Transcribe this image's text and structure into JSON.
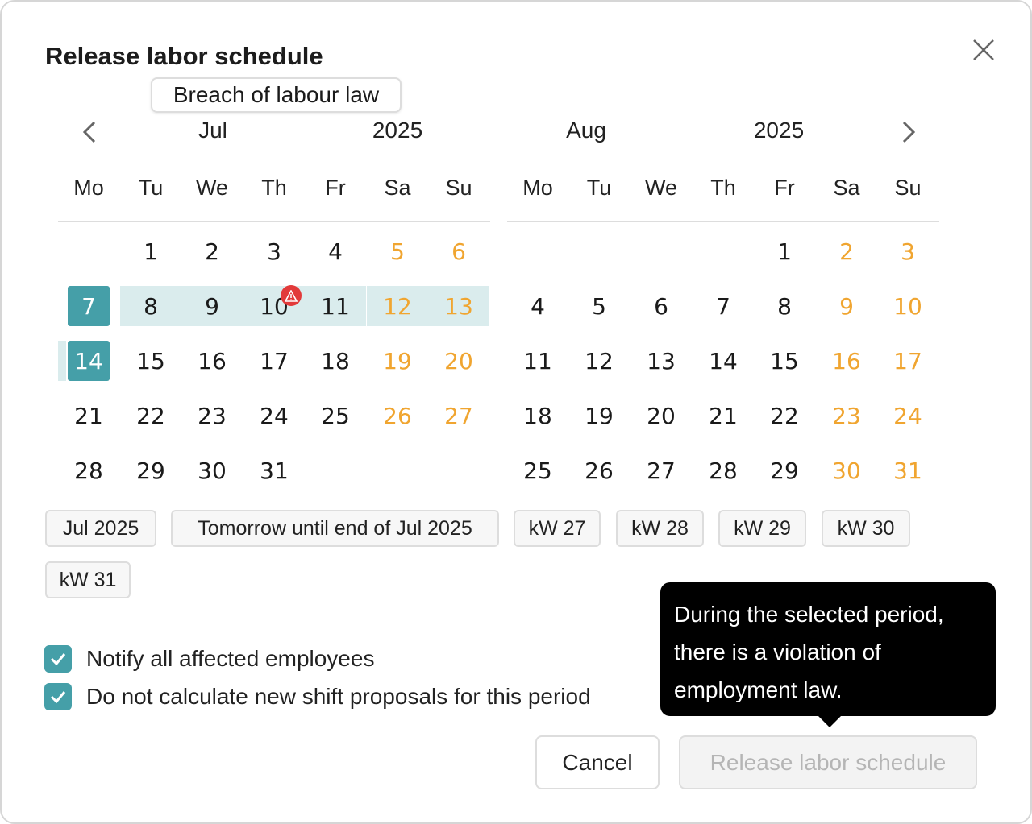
{
  "dialog": {
    "title": "Release labor schedule",
    "close_icon": "close-icon"
  },
  "calendar": {
    "left": {
      "month": "Jul",
      "year": "2025"
    },
    "right": {
      "month": "Aug",
      "year": "2025"
    },
    "weekdays": [
      "Mo",
      "Tu",
      "We",
      "Th",
      "Fr",
      "Sa",
      "Su"
    ],
    "left_weeks": [
      [
        "",
        "1",
        "2",
        "3",
        "4",
        "5",
        "6"
      ],
      [
        "7",
        "8",
        "9",
        "10",
        "11",
        "12",
        "13"
      ],
      [
        "14",
        "15",
        "16",
        "17",
        "18",
        "19",
        "20"
      ],
      [
        "21",
        "22",
        "23",
        "24",
        "25",
        "26",
        "27"
      ],
      [
        "28",
        "29",
        "30",
        "31",
        "",
        "",
        ""
      ]
    ],
    "right_weeks": [
      [
        "",
        "",
        "",
        "",
        "1",
        "2",
        "3"
      ],
      [
        "4",
        "5",
        "6",
        "7",
        "8",
        "9",
        "10"
      ],
      [
        "11",
        "12",
        "13",
        "14",
        "15",
        "16",
        "17"
      ],
      [
        "18",
        "19",
        "20",
        "21",
        "22",
        "23",
        "24"
      ],
      [
        "25",
        "26",
        "27",
        "28",
        "29",
        "30",
        "31"
      ]
    ],
    "selected_range": {
      "start": "Jul 7",
      "end": "Jul 14"
    },
    "warning_day": "10",
    "day_tooltip": "Breach of labour law",
    "colors": {
      "accent": "#459fa8",
      "range": "#daeced",
      "weekend": "#f0a530",
      "warning": "#e23a3a"
    }
  },
  "presets": [
    "Jul 2025",
    "Tomorrow until end of Jul 2025",
    "kW 27",
    "kW 28",
    "kW 29",
    "kW 30",
    "kW 31"
  ],
  "options": [
    {
      "label": "Notify all affected employees",
      "checked": true
    },
    {
      "label": "Do not calculate new shift proposals for this period",
      "checked": true
    }
  ],
  "violation_tooltip": [
    "During the selected period,",
    "there is a violation of",
    "employment law."
  ],
  "buttons": {
    "cancel": "Cancel",
    "release": "Release labor schedule"
  }
}
